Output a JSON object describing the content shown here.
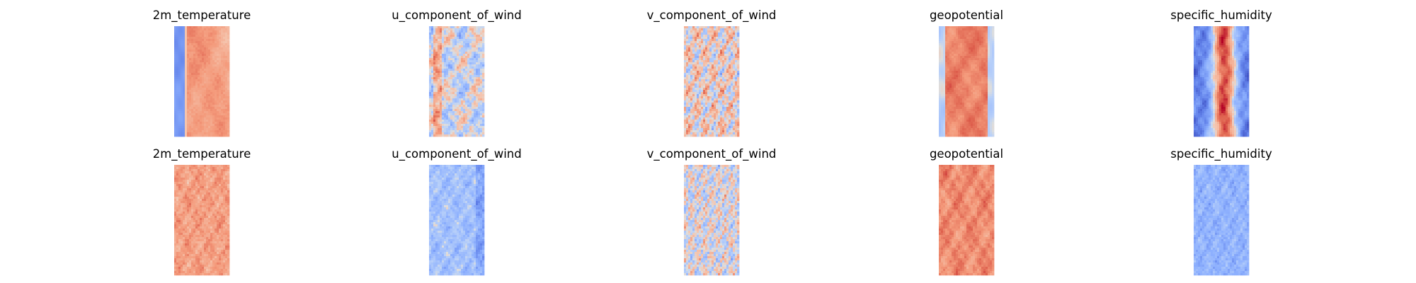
{
  "chart_data": {
    "type": "heatmap",
    "colormap": "coolwarm",
    "axes_visible": false,
    "grid": false,
    "legend": "none",
    "rows": 2,
    "cols": 5,
    "panels": [
      {
        "title": "2m_temperature",
        "pattern": "temp_top"
      },
      {
        "title": "u_component_of_wind",
        "pattern": "u_top"
      },
      {
        "title": "v_component_of_wind",
        "pattern": "v_top"
      },
      {
        "title": "geopotential",
        "pattern": "geo_top"
      },
      {
        "title": "specific_humidity",
        "pattern": "hum_top"
      },
      {
        "title": "2m_temperature",
        "pattern": "temp_bot"
      },
      {
        "title": "u_component_of_wind",
        "pattern": "u_bot"
      },
      {
        "title": "v_component_of_wind",
        "pattern": "v_bot"
      },
      {
        "title": "geopotential",
        "pattern": "geo_bot"
      },
      {
        "title": "specific_humidity",
        "pattern": "hum_bot"
      }
    ]
  }
}
